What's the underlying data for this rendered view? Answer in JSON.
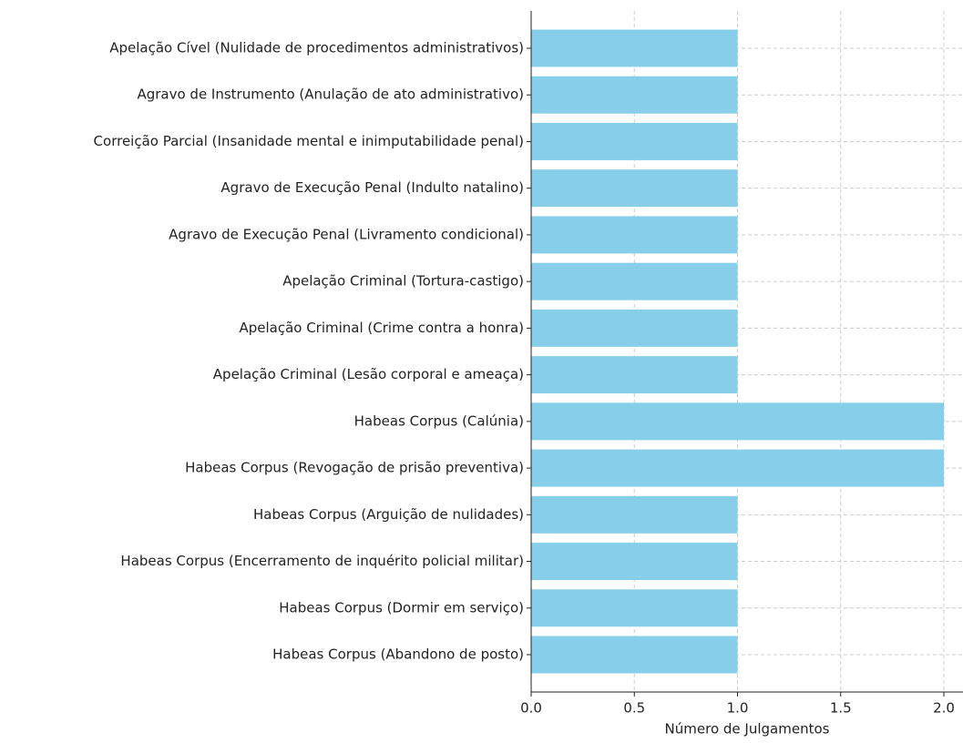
{
  "chart_data": {
    "type": "barh",
    "xlabel": "Número de Julgamentos",
    "categories": [
      "Apelação Cível (Nulidade de procedimentos administrativos)",
      "Agravo de Instrumento (Anulação de ato administrativo)",
      "Correição Parcial (Insanidade mental e inimputabilidade penal)",
      "Agravo de Execução Penal (Indulto natalino)",
      "Agravo de Execução Penal (Livramento condicional)",
      "Apelação Criminal (Tortura-castigo)",
      "Apelação Criminal (Crime contra a honra)",
      "Apelação Criminal (Lesão corporal e ameaça)",
      "Habeas Corpus (Calúnia)",
      "Habeas Corpus (Revogação de prisão preventiva)",
      "Habeas Corpus (Arguição de nulidades)",
      "Habeas Corpus (Encerramento de inquérito policial militar)",
      "Habeas Corpus (Dormir em serviço)",
      "Habeas Corpus (Abandono de posto)"
    ],
    "values": [
      1,
      1,
      1,
      1,
      1,
      1,
      1,
      1,
      2,
      2,
      1,
      1,
      1,
      1
    ],
    "color": "#87ceeb",
    "xlim": [
      0,
      2.1
    ],
    "xticks": [
      {
        "value": 0,
        "label": "0.0"
      },
      {
        "value": 0.5,
        "label": "0.5"
      },
      {
        "value": 1,
        "label": "1.0"
      },
      {
        "value": 1.5,
        "label": "1.5"
      },
      {
        "value": 2,
        "label": "2.0"
      }
    ],
    "grid": true
  }
}
